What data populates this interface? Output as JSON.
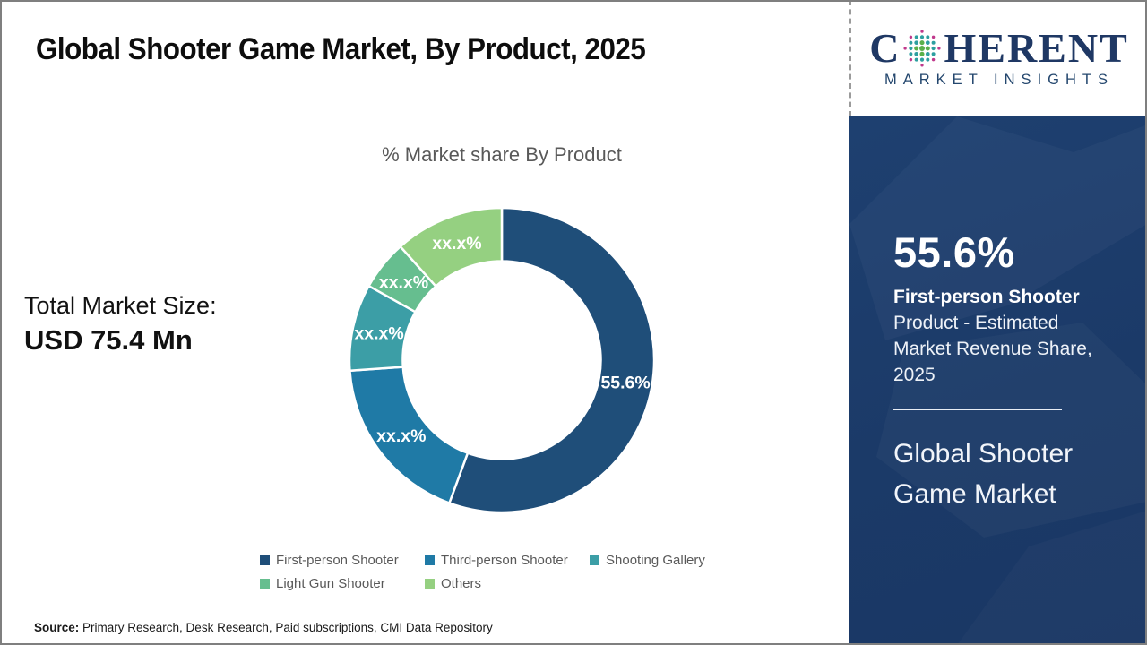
{
  "title": "Global Shooter Game Market, By Product, 2025",
  "logo": {
    "part1": "C",
    "part2": "HERENT",
    "tagline": "MARKET INSIGHTS",
    "text_color": "#1f3864",
    "globe_colors": {
      "center": "#5ab04a",
      "mid": "#2d9fa0",
      "outer": "#c0398c"
    }
  },
  "total_market": {
    "label": "Total Market Size:",
    "value": "USD 75.4 Mn"
  },
  "chart_data": {
    "type": "pie",
    "subtype": "donut",
    "title": "% Market share By Product",
    "legend_position": "bottom",
    "inner_radius_ratio": 0.65,
    "start_angle_deg": 0,
    "direction": "clockwise",
    "series": [
      {
        "name": "First-person Shooter",
        "value": 55.6,
        "display_label": "55.6%",
        "color": "#1F4E79"
      },
      {
        "name": "Third-person Shooter",
        "value": 18.3,
        "display_label": "xx.x%",
        "color": "#1F7AA6"
      },
      {
        "name": "Shooting Gallery",
        "value": 9.2,
        "display_label": "xx.x%",
        "color": "#3C9EA6"
      },
      {
        "name": "Light Gun Shooter",
        "value": 5.3,
        "display_label": "xx.x%",
        "color": "#66BE8F"
      },
      {
        "name": "Others",
        "value": 11.6,
        "display_label": "xx.x%",
        "color": "#95D081"
      }
    ]
  },
  "sidebar": {
    "stat_value": "55.6%",
    "stat_label_bold": "First-person Shooter",
    "stat_label_rest": "Product - Estimated Market Revenue Share, 2025",
    "market_name": "Global Shooter Game Market",
    "panel_color": "#1b3a68"
  },
  "source": {
    "label": "Source:",
    "text": "Primary Research, Desk Research, Paid subscriptions, CMI Data Repository"
  }
}
